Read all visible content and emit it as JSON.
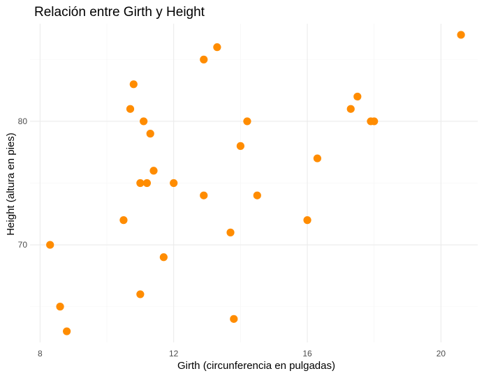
{
  "chart_data": {
    "type": "scatter",
    "title": "Relación entre Girth y Height",
    "xlabel": "Girth (circunferencia en pulgadas)",
    "ylabel": "Height (altura en pies)",
    "xlim": [
      7.7,
      21.1
    ],
    "ylim": [
      62.1,
      87.9
    ],
    "x_ticks": [
      8,
      12,
      16,
      20
    ],
    "x_minor_ticks": [
      10,
      14,
      18
    ],
    "y_ticks": [
      70,
      80
    ],
    "y_minor_ticks": [
      65,
      75,
      85
    ],
    "grid": true,
    "point_color": "#FF8C00",
    "points": [
      {
        "x": 8.3,
        "y": 70
      },
      {
        "x": 8.6,
        "y": 65
      },
      {
        "x": 8.8,
        "y": 63
      },
      {
        "x": 10.5,
        "y": 72
      },
      {
        "x": 10.7,
        "y": 81
      },
      {
        "x": 10.8,
        "y": 83
      },
      {
        "x": 11.0,
        "y": 66
      },
      {
        "x": 11.0,
        "y": 75
      },
      {
        "x": 11.1,
        "y": 80
      },
      {
        "x": 11.2,
        "y": 75
      },
      {
        "x": 11.3,
        "y": 79
      },
      {
        "x": 11.4,
        "y": 76
      },
      {
        "x": 11.7,
        "y": 69
      },
      {
        "x": 12.0,
        "y": 75
      },
      {
        "x": 12.9,
        "y": 74
      },
      {
        "x": 12.9,
        "y": 85
      },
      {
        "x": 13.3,
        "y": 86
      },
      {
        "x": 13.7,
        "y": 71
      },
      {
        "x": 13.8,
        "y": 64
      },
      {
        "x": 14.0,
        "y": 78
      },
      {
        "x": 14.2,
        "y": 80
      },
      {
        "x": 14.5,
        "y": 74
      },
      {
        "x": 16.0,
        "y": 72
      },
      {
        "x": 16.3,
        "y": 77
      },
      {
        "x": 17.3,
        "y": 81
      },
      {
        "x": 17.5,
        "y": 82
      },
      {
        "x": 17.9,
        "y": 80
      },
      {
        "x": 18.0,
        "y": 80
      },
      {
        "x": 20.6,
        "y": 87
      }
    ]
  }
}
